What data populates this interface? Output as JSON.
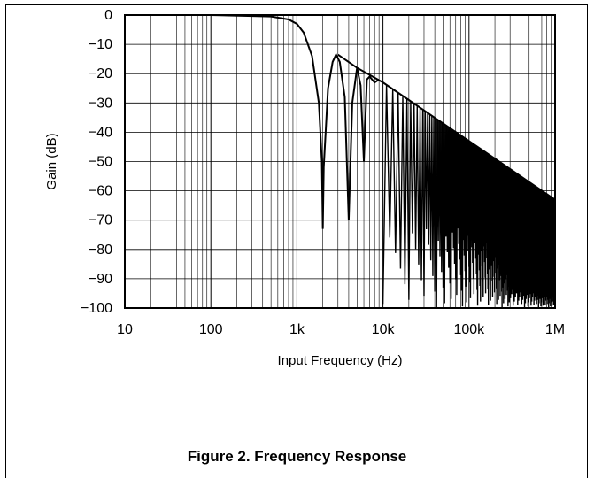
{
  "figure": {
    "caption": "Figure 2. Frequency Response"
  },
  "chart_data": {
    "type": "line",
    "xlabel": "Input Frequency (Hz)",
    "ylabel": "Gain (dB)",
    "x_scale": "log",
    "xlim": [
      10,
      1000000
    ],
    "ylim": [
      -100,
      0
    ],
    "x_ticks": [
      {
        "value": 10,
        "label": "10"
      },
      {
        "value": 100,
        "label": "100"
      },
      {
        "value": 1000,
        "label": "1k"
      },
      {
        "value": 10000,
        "label": "10k"
      },
      {
        "value": 100000,
        "label": "100k"
      },
      {
        "value": 1000000,
        "label": "1M"
      }
    ],
    "y_ticks": [
      0,
      -10,
      -20,
      -30,
      -40,
      -50,
      -60,
      -70,
      -80,
      -90,
      -100
    ],
    "y_tick_labels": [
      "0",
      "−10",
      "−20",
      "−30",
      "−40",
      "−50",
      "−60",
      "−70",
      "−80",
      "−90",
      "−100"
    ],
    "grid": true,
    "series": [
      {
        "x": [
          10,
          100,
          500,
          800,
          1000,
          1200,
          1500,
          1800,
          1950,
          2000,
          2050,
          2300,
          2600,
          2850,
          3150,
          3600,
          4000,
          4400,
          5000,
          5500,
          6000,
          6500,
          7000,
          8000,
          9000,
          10000,
          20000,
          40000,
          100000,
          300000,
          1000000
        ],
        "y": [
          0,
          0,
          -0.5,
          -1.5,
          -3,
          -6,
          -14,
          -30,
          -50,
          -73,
          -52,
          -25,
          -16,
          -13.5,
          -16,
          -28,
          -70,
          -30,
          -18,
          -24,
          -50,
          -22,
          -21,
          -23,
          -22,
          -23,
          -29,
          -35,
          -43,
          -52,
          -63
        ],
        "envelope_upper": {
          "x": [
            3000,
            5000,
            10000,
            20000,
            50000,
            100000,
            200000,
            500000,
            1000000
          ],
          "y": [
            -13.5,
            -18,
            -23,
            -29,
            -37,
            -43,
            -49,
            -57,
            -63
          ]
        }
      }
    ]
  }
}
